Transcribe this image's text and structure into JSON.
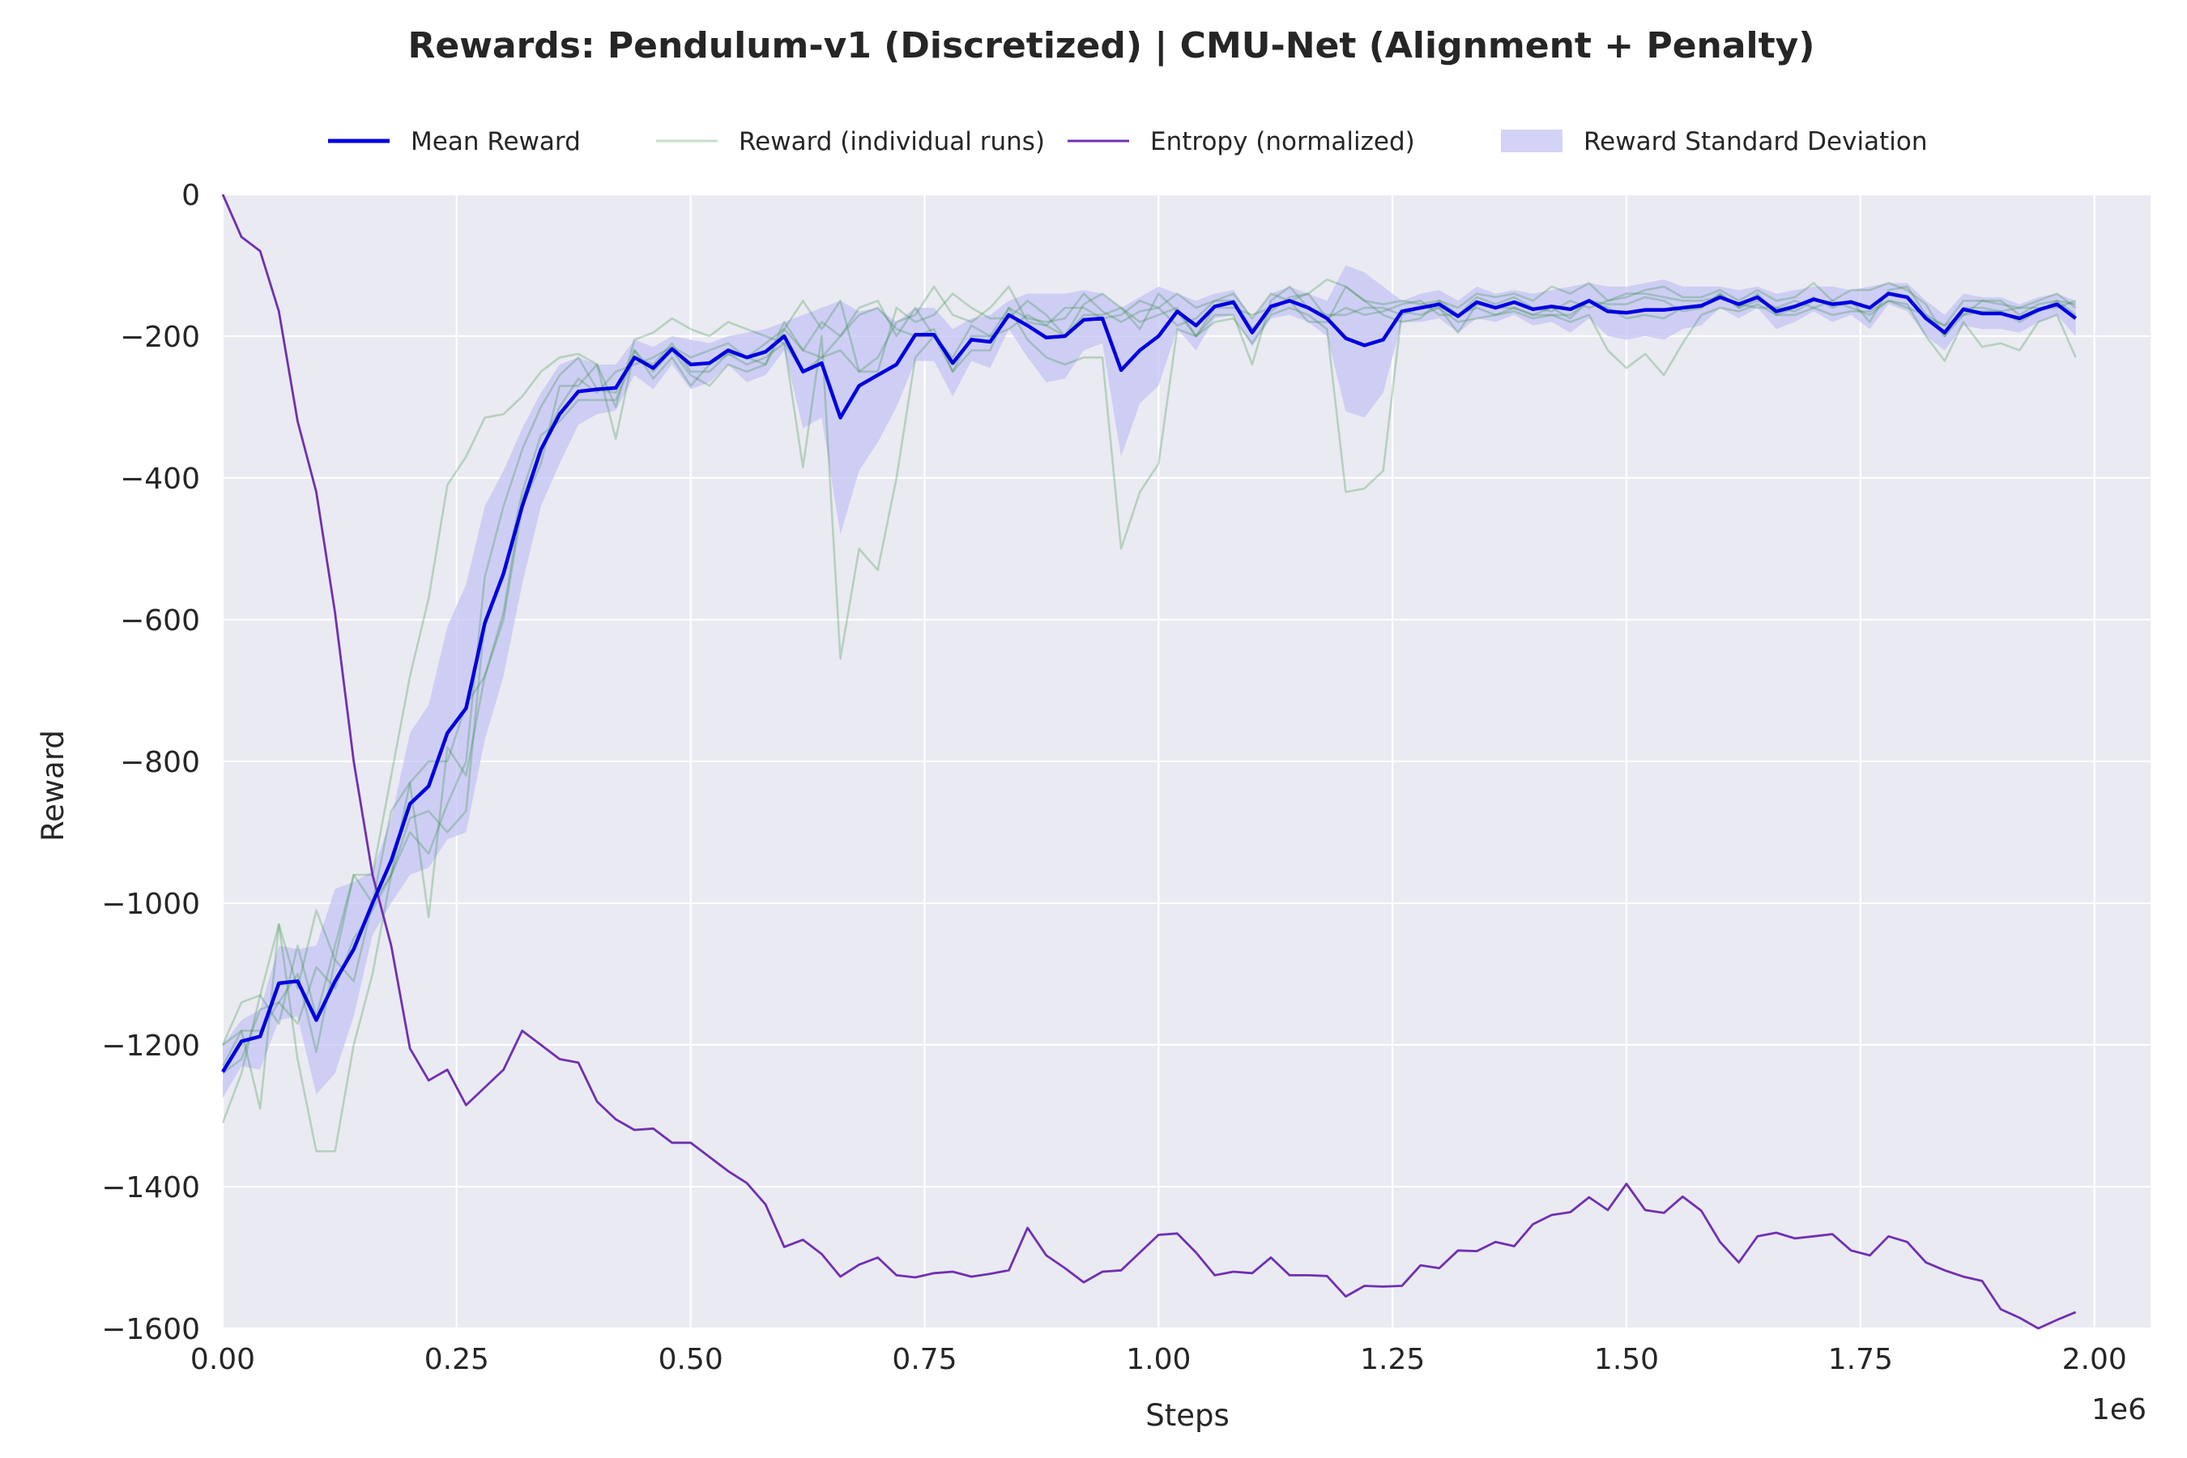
{
  "chart_data": {
    "type": "line",
    "title": "Rewards: Pendulum-v1 (Discretized) | CMU-Net (Alignment + Penalty)",
    "xlabel": "Steps",
    "ylabel": "Reward",
    "x_offset_label": "1e6",
    "xlim": [
      0,
      2.06
    ],
    "ylim": [
      -1600,
      0
    ],
    "xticks": [
      0,
      0.25,
      0.5,
      0.75,
      1.0,
      1.25,
      1.5,
      1.75,
      2.0
    ],
    "xtick_labels": [
      "0.00",
      "0.25",
      "0.50",
      "0.75",
      "1.00",
      "1.25",
      "1.50",
      "1.75",
      "2.00"
    ],
    "yticks": [
      0,
      -200,
      -400,
      -600,
      -800,
      -1000,
      -1200,
      -1400,
      -1600
    ],
    "ytick_labels": [
      "0",
      "−200",
      "−400",
      "−600",
      "−800",
      "−1000",
      "−1200",
      "−1400",
      "−1600"
    ],
    "grid": true,
    "legend_position": "top-center",
    "colors": {
      "background": "#eaeaf2",
      "grid": "#ffffff",
      "mean": "#0000e0",
      "runs": "#2e8b3e",
      "entropy": "#7030b0",
      "std": "#c4c4f4"
    },
    "legend": [
      {
        "label": "Mean Reward",
        "kind": "mean"
      },
      {
        "label": "Reward (individual runs)",
        "kind": "runs"
      },
      {
        "label": "Entropy (normalized)",
        "kind": "entropy"
      },
      {
        "label": "Reward Standard Deviation",
        "kind": "std"
      }
    ],
    "x_step": 0.02,
    "mean_reward": [
      -1238,
      -1195,
      -1188,
      -1113,
      -1110,
      -1165,
      -1110,
      -1065,
      -1000,
      -940,
      -860,
      -835,
      -760,
      -725,
      -605,
      -535,
      -440,
      -360,
      -310,
      -278,
      -275,
      -273,
      -230,
      -245,
      -218,
      -240,
      -238,
      -220,
      -230,
      -222,
      -200,
      -250,
      -238,
      -315,
      -270,
      -255,
      -240,
      -198,
      -198,
      -238,
      -205,
      -208,
      -170,
      -185,
      -202,
      -200,
      -177,
      -175,
      -248,
      -220,
      -200,
      -165,
      -185,
      -158,
      -152,
      -195,
      -158,
      -150,
      -160,
      -175,
      -203,
      -213,
      -205,
      -165,
      -160,
      -155,
      -172,
      -152,
      -160,
      -152,
      -162,
      -158,
      -162,
      -150,
      -165,
      -167,
      -163,
      -163,
      -160,
      -157,
      -145,
      -155,
      -145,
      -165,
      -158,
      -148,
      -155,
      -152,
      -160,
      -140,
      -145,
      -175,
      -195,
      -162,
      -168,
      -168,
      -175,
      -163,
      -155,
      -175
    ],
    "std_upper": [
      -1200,
      -1165,
      -1150,
      -1060,
      -1065,
      -1060,
      -980,
      -970,
      -955,
      -880,
      -760,
      -720,
      -610,
      -550,
      -440,
      -390,
      -330,
      -280,
      -240,
      -230,
      -240,
      -240,
      -205,
      -215,
      -200,
      -205,
      -210,
      -200,
      -195,
      -190,
      -180,
      -170,
      -160,
      -150,
      -165,
      -160,
      -180,
      -160,
      -160,
      -190,
      -175,
      -170,
      -150,
      -140,
      -140,
      -140,
      -135,
      -140,
      -160,
      -145,
      -130,
      -140,
      -150,
      -140,
      -135,
      -175,
      -140,
      -130,
      -140,
      -150,
      -100,
      -110,
      -130,
      -150,
      -140,
      -135,
      -150,
      -130,
      -140,
      -135,
      -140,
      -135,
      -130,
      -125,
      -130,
      -130,
      -125,
      -120,
      -130,
      -130,
      -130,
      -135,
      -130,
      -140,
      -135,
      -130,
      -130,
      -135,
      -130,
      -125,
      -125,
      -150,
      -170,
      -140,
      -145,
      -145,
      -155,
      -145,
      -140,
      -150
    ],
    "std_lower": [
      -1275,
      -1230,
      -1235,
      -1165,
      -1160,
      -1270,
      -1240,
      -1160,
      -1045,
      -1000,
      -960,
      -950,
      -910,
      -900,
      -770,
      -680,
      -550,
      -440,
      -380,
      -325,
      -310,
      -305,
      -255,
      -275,
      -240,
      -275,
      -265,
      -240,
      -265,
      -255,
      -220,
      -330,
      -315,
      -480,
      -390,
      -350,
      -300,
      -235,
      -235,
      -285,
      -235,
      -245,
      -190,
      -230,
      -265,
      -260,
      -220,
      -210,
      -370,
      -295,
      -270,
      -190,
      -220,
      -175,
      -170,
      -215,
      -175,
      -170,
      -180,
      -200,
      -306,
      -315,
      -280,
      -180,
      -180,
      -175,
      -195,
      -175,
      -180,
      -170,
      -185,
      -180,
      -195,
      -175,
      -200,
      -205,
      -200,
      -205,
      -190,
      -185,
      -160,
      -175,
      -160,
      -190,
      -180,
      -165,
      -180,
      -170,
      -190,
      -155,
      -165,
      -200,
      -220,
      -185,
      -190,
      -190,
      -195,
      -180,
      -170,
      -200
    ],
    "runs": [
      {
        "values": [
          -1200,
          -1140,
          -1130,
          -1170,
          -1060,
          -1160,
          -1060,
          -960,
          -960,
          -820,
          -680,
          -570,
          -410,
          -370,
          -315,
          -310,
          -285,
          -250,
          -230,
          -225,
          -240,
          -300,
          -205,
          -195,
          -175,
          -190,
          -200,
          -180,
          -190,
          -200,
          -210,
          -250,
          -230,
          -220,
          -250,
          -230,
          -180,
          -170,
          -130,
          -170,
          -180,
          -160,
          -130,
          -180,
          -185,
          -160,
          -160,
          -175,
          -170,
          -150,
          -160,
          -140,
          -160,
          -150,
          -140,
          -175,
          -140,
          -150,
          -140,
          -120,
          -130,
          -150,
          -155,
          -150,
          -155,
          -150,
          -160,
          -140,
          -145,
          -140,
          -150,
          -130,
          -140,
          -125,
          -150,
          -145,
          -135,
          -130,
          -145,
          -145,
          -135,
          -150,
          -135,
          -150,
          -145,
          -125,
          -150,
          -135,
          -135,
          -125,
          -135,
          -155,
          -200,
          -160,
          -160,
          -165,
          -160,
          -150,
          -140,
          -160
        ]
      },
      {
        "values": [
          -1310,
          -1240,
          -1130,
          -1030,
          -1220,
          -1350,
          -1350,
          -1200,
          -1100,
          -960,
          -880,
          -870,
          -900,
          -870,
          -600,
          -540,
          -420,
          -340,
          -320,
          -290,
          -290,
          -290,
          -230,
          -240,
          -210,
          -250,
          -250,
          -225,
          -240,
          -230,
          -210,
          -385,
          -200,
          -655,
          -500,
          -530,
          -400,
          -230,
          -200,
          -250,
          -220,
          -220,
          -160,
          -205,
          -230,
          -240,
          -230,
          -230,
          -500,
          -420,
          -380,
          -190,
          -200,
          -180,
          -175,
          -210,
          -170,
          -160,
          -170,
          -190,
          -420,
          -415,
          -390,
          -165,
          -170,
          -160,
          -180,
          -175,
          -170,
          -165,
          -175,
          -170,
          -180,
          -170,
          -220,
          -245,
          -225,
          -255,
          -210,
          -170,
          -160,
          -165,
          -155,
          -170,
          -170,
          -160,
          -170,
          -165,
          -165,
          -150,
          -155,
          -200,
          -235,
          -180,
          -215,
          -210,
          -220,
          -180,
          -170,
          -230
        ]
      },
      {
        "values": [
          -1200,
          -1180,
          -1290,
          -1030,
          -1120,
          -1010,
          -1080,
          -960,
          -1000,
          -870,
          -830,
          -1020,
          -780,
          -820,
          -680,
          -600,
          -440,
          -380,
          -270,
          -270,
          -240,
          -345,
          -220,
          -260,
          -230,
          -270,
          -240,
          -225,
          -230,
          -240,
          -180,
          -220,
          -230,
          -200,
          -160,
          -150,
          -200,
          -160,
          -200,
          -230,
          -185,
          -200,
          -160,
          -175,
          -180,
          -175,
          -140,
          -165,
          -180,
          -165,
          -160,
          -185,
          -175,
          -150,
          -150,
          -190,
          -165,
          -145,
          -140,
          -175,
          -160,
          -170,
          -165,
          -155,
          -150,
          -170,
          -170,
          -145,
          -155,
          -145,
          -160,
          -165,
          -150,
          -160,
          -150,
          -140,
          -140,
          -145,
          -150,
          -150,
          -145,
          -155,
          -160,
          -160,
          -150,
          -160,
          -150,
          -160,
          -170,
          -150,
          -160,
          -170,
          -185,
          -170,
          -150,
          -155,
          -160,
          -160,
          -160,
          -150
        ]
      },
      {
        "values": [
          -1240,
          -1220,
          -1150,
          -1140,
          -1170,
          -1090,
          -1120,
          -1050,
          -1010,
          -960,
          -900,
          -930,
          -860,
          -800,
          -540,
          -440,
          -360,
          -300,
          -255,
          -230,
          -275,
          -280,
          -220,
          -250,
          -220,
          -255,
          -270,
          -240,
          -250,
          -240,
          -190,
          -150,
          -190,
          -150,
          -250,
          -250,
          -160,
          -180,
          -170,
          -140,
          -160,
          -175,
          -175,
          -150,
          -170,
          -200,
          -155,
          -140,
          -160,
          -190,
          -140,
          -165,
          -200,
          -170,
          -170,
          -240,
          -150,
          -130,
          -160,
          -170,
          -170,
          -160,
          -160,
          -170,
          -160,
          -160,
          -195,
          -155,
          -160,
          -160,
          -170,
          -170,
          -170,
          -150,
          -155,
          -155,
          -145,
          -150,
          -165,
          -160,
          -140,
          -160,
          -150,
          -160,
          -165,
          -150,
          -155,
          -150,
          -160,
          -140,
          -145,
          -175,
          -185,
          -150,
          -150,
          -150,
          -170,
          -155,
          -150,
          -155
        ]
      },
      {
        "values": [
          -1230,
          -1180,
          -1180,
          -1140,
          -1100,
          -1210,
          -1080,
          -1110,
          -1000,
          -960,
          -830,
          -800,
          -800,
          -720,
          -680,
          -590,
          -430,
          -360,
          -300,
          -260,
          -280,
          -250,
          -240,
          -230,
          -215,
          -230,
          -220,
          -210,
          -230,
          -210,
          -190,
          -220,
          -180,
          -200,
          -170,
          -160,
          -190,
          -200,
          -190,
          -250,
          -200,
          -200,
          -190,
          -170,
          -185,
          -200,
          -170,
          -170,
          -160,
          -180,
          -170,
          -160,
          -200,
          -160,
          -160,
          -170,
          -160,
          -150,
          -180,
          -180,
          -130,
          -150,
          -170,
          -180,
          -175,
          -150,
          -170,
          -160,
          -170,
          -160,
          -170,
          -160,
          -175,
          -150,
          -160,
          -175,
          -170,
          -175,
          -160,
          -160,
          -140,
          -160,
          -140,
          -170,
          -160,
          -145,
          -160,
          -150,
          -180,
          -135,
          -130,
          -170,
          -200,
          -170,
          -165,
          -165,
          -180,
          -165,
          -150,
          -170
        ]
      }
    ],
    "entropy": [
      0,
      -60,
      -80,
      -165,
      -320,
      -420,
      -590,
      -800,
      -960,
      -1060,
      -1205,
      -1250,
      -1235,
      -1285,
      -1260,
      -1235,
      -1180,
      -1200,
      -1220,
      -1225,
      -1280,
      -1305,
      -1320,
      -1318,
      -1338,
      -1338,
      -1358,
      -1378,
      -1395,
      -1425,
      -1485,
      -1475,
      -1495,
      -1527,
      -1510,
      -1500,
      -1525,
      -1528,
      -1522,
      -1520,
      -1527,
      -1523,
      -1518,
      -1458,
      -1497,
      -1515,
      -1535,
      -1520,
      -1518,
      -1493,
      -1468,
      -1466,
      -1493,
      -1525,
      -1520,
      -1522,
      -1500,
      -1525,
      -1525,
      -1526,
      -1555,
      -1540,
      -1541,
      -1540,
      -1511,
      -1515,
      -1490,
      -1491,
      -1478,
      -1484,
      -1453,
      -1440,
      -1436,
      -1415,
      -1433,
      -1396,
      -1433,
      -1437,
      -1414,
      -1434,
      -1478,
      -1507,
      -1470,
      -1465,
      -1473,
      -1470,
      -1467,
      -1490,
      -1497,
      -1470,
      -1478,
      -1507,
      -1518,
      -1527,
      -1533,
      -1573,
      -1585,
      -1600,
      -1588,
      -1577
    ]
  }
}
